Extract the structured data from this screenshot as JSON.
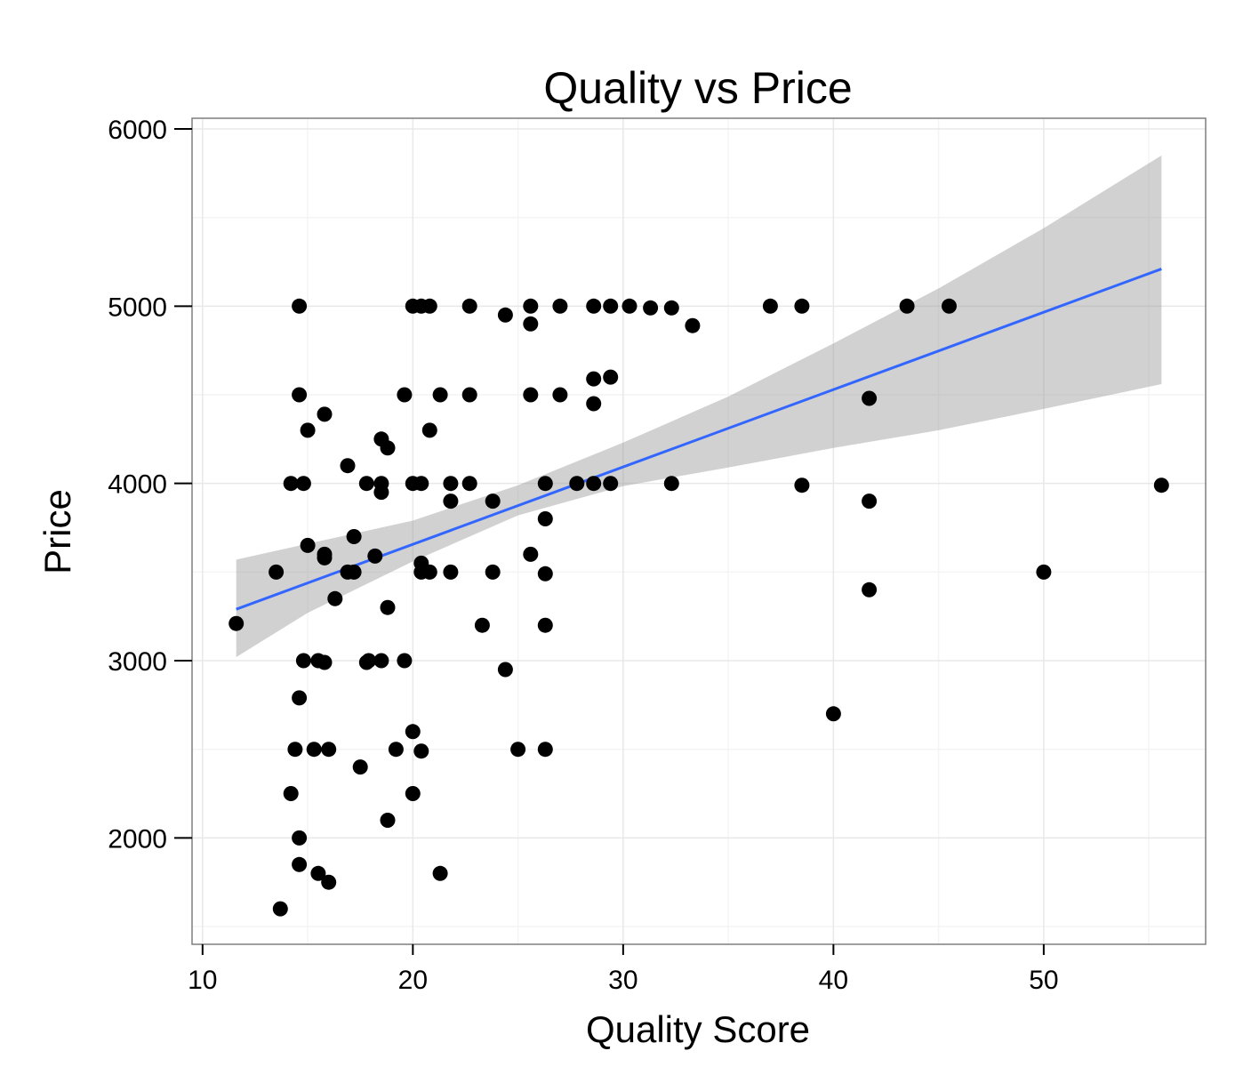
{
  "chart_data": {
    "type": "scatter",
    "title": "Quality vs Price",
    "xlabel": "Quality Score",
    "ylabel": "Price",
    "xlim": [
      9.5,
      57.7
    ],
    "ylim": [
      1400,
      6060
    ],
    "xticks": [
      10,
      20,
      30,
      40,
      50
    ],
    "yticks": [
      2000,
      3000,
      4000,
      5000,
      6000
    ],
    "xtick_labels": [
      "10",
      "20",
      "30",
      "40",
      "50"
    ],
    "ytick_labels": [
      "2000",
      "3000",
      "4000",
      "5000",
      "6000"
    ],
    "grid": true,
    "legend": "none",
    "colors": {
      "points": "#000000",
      "trend_line": "#3366FF",
      "confidence_band": "#999999",
      "grid_major": "#E8E8E8",
      "grid_minor": "#F4F4F4",
      "panel_border": "#7F7F7F"
    },
    "points": [
      [
        11.6,
        3210
      ],
      [
        13.5,
        3500
      ],
      [
        13.7,
        1600
      ],
      [
        14.2,
        4000
      ],
      [
        14.2,
        2250
      ],
      [
        14.4,
        2500
      ],
      [
        14.6,
        5000
      ],
      [
        14.6,
        4500
      ],
      [
        14.6,
        2790
      ],
      [
        14.6,
        2000
      ],
      [
        14.6,
        1850
      ],
      [
        14.8,
        4000
      ],
      [
        14.8,
        3000
      ],
      [
        15.0,
        4300
      ],
      [
        15.0,
        3650
      ],
      [
        15.3,
        2500
      ],
      [
        15.5,
        3000
      ],
      [
        15.5,
        1800
      ],
      [
        15.8,
        4390
      ],
      [
        15.8,
        3600
      ],
      [
        15.8,
        3580
      ],
      [
        15.8,
        2990
      ],
      [
        16.0,
        2500
      ],
      [
        16.0,
        1750
      ],
      [
        16.3,
        3350
      ],
      [
        16.9,
        4100
      ],
      [
        16.9,
        3500
      ],
      [
        17.2,
        3700
      ],
      [
        17.2,
        3500
      ],
      [
        17.5,
        2400
      ],
      [
        17.8,
        4000
      ],
      [
        17.8,
        2990
      ],
      [
        17.9,
        3000
      ],
      [
        18.2,
        3590
      ],
      [
        18.5,
        4250
      ],
      [
        18.5,
        4000
      ],
      [
        18.5,
        3950
      ],
      [
        18.5,
        3000
      ],
      [
        18.8,
        4200
      ],
      [
        18.8,
        3300
      ],
      [
        18.8,
        2100
      ],
      [
        19.2,
        2500
      ],
      [
        19.6,
        4500
      ],
      [
        19.6,
        3000
      ],
      [
        20.0,
        5000
      ],
      [
        20.0,
        4000
      ],
      [
        20.0,
        2600
      ],
      [
        20.0,
        2250
      ],
      [
        20.4,
        5000
      ],
      [
        20.4,
        4000
      ],
      [
        20.4,
        3550
      ],
      [
        20.4,
        3500
      ],
      [
        20.4,
        2490
      ],
      [
        20.8,
        5000
      ],
      [
        20.8,
        4300
      ],
      [
        20.8,
        3500
      ],
      [
        21.3,
        4500
      ],
      [
        21.3,
        1800
      ],
      [
        21.8,
        4000
      ],
      [
        21.8,
        3900
      ],
      [
        21.8,
        3500
      ],
      [
        22.7,
        5000
      ],
      [
        22.7,
        4500
      ],
      [
        22.7,
        4000
      ],
      [
        23.3,
        3200
      ],
      [
        23.8,
        3900
      ],
      [
        23.8,
        3500
      ],
      [
        24.4,
        4950
      ],
      [
        24.4,
        2950
      ],
      [
        25.0,
        2500
      ],
      [
        25.6,
        5000
      ],
      [
        25.6,
        4900
      ],
      [
        25.6,
        4500
      ],
      [
        25.6,
        3600
      ],
      [
        26.3,
        4000
      ],
      [
        26.3,
        3800
      ],
      [
        26.3,
        3490
      ],
      [
        26.3,
        3200
      ],
      [
        26.3,
        2500
      ],
      [
        27.0,
        5000
      ],
      [
        27.0,
        4500
      ],
      [
        27.8,
        4000
      ],
      [
        28.6,
        5000
      ],
      [
        28.6,
        4590
      ],
      [
        28.6,
        4450
      ],
      [
        28.6,
        4000
      ],
      [
        29.4,
        5000
      ],
      [
        29.4,
        4600
      ],
      [
        29.4,
        4000
      ],
      [
        30.3,
        5000
      ],
      [
        31.3,
        4990
      ],
      [
        32.3,
        4990
      ],
      [
        32.3,
        4000
      ],
      [
        33.3,
        4890
      ],
      [
        37.0,
        5000
      ],
      [
        38.5,
        5000
      ],
      [
        38.5,
        3990
      ],
      [
        40.0,
        2700
      ],
      [
        41.7,
        4480
      ],
      [
        41.7,
        3900
      ],
      [
        41.7,
        3400
      ],
      [
        43.5,
        5000
      ],
      [
        45.5,
        5000
      ],
      [
        50.0,
        3500
      ],
      [
        55.6,
        3990
      ]
    ],
    "trend_line": {
      "x": [
        11.6,
        55.6
      ],
      "y": [
        3290,
        5210
      ]
    },
    "confidence_band": {
      "x": [
        11.6,
        15,
        20,
        25,
        30,
        35,
        40,
        45,
        50,
        55.6
      ],
      "lower": [
        3020,
        3270,
        3560,
        3820,
        3985,
        4090,
        4200,
        4300,
        4420,
        4560
      ],
      "upper": [
        3570,
        3660,
        3790,
        3990,
        4230,
        4490,
        4790,
        5100,
        5440,
        5850
      ]
    }
  }
}
